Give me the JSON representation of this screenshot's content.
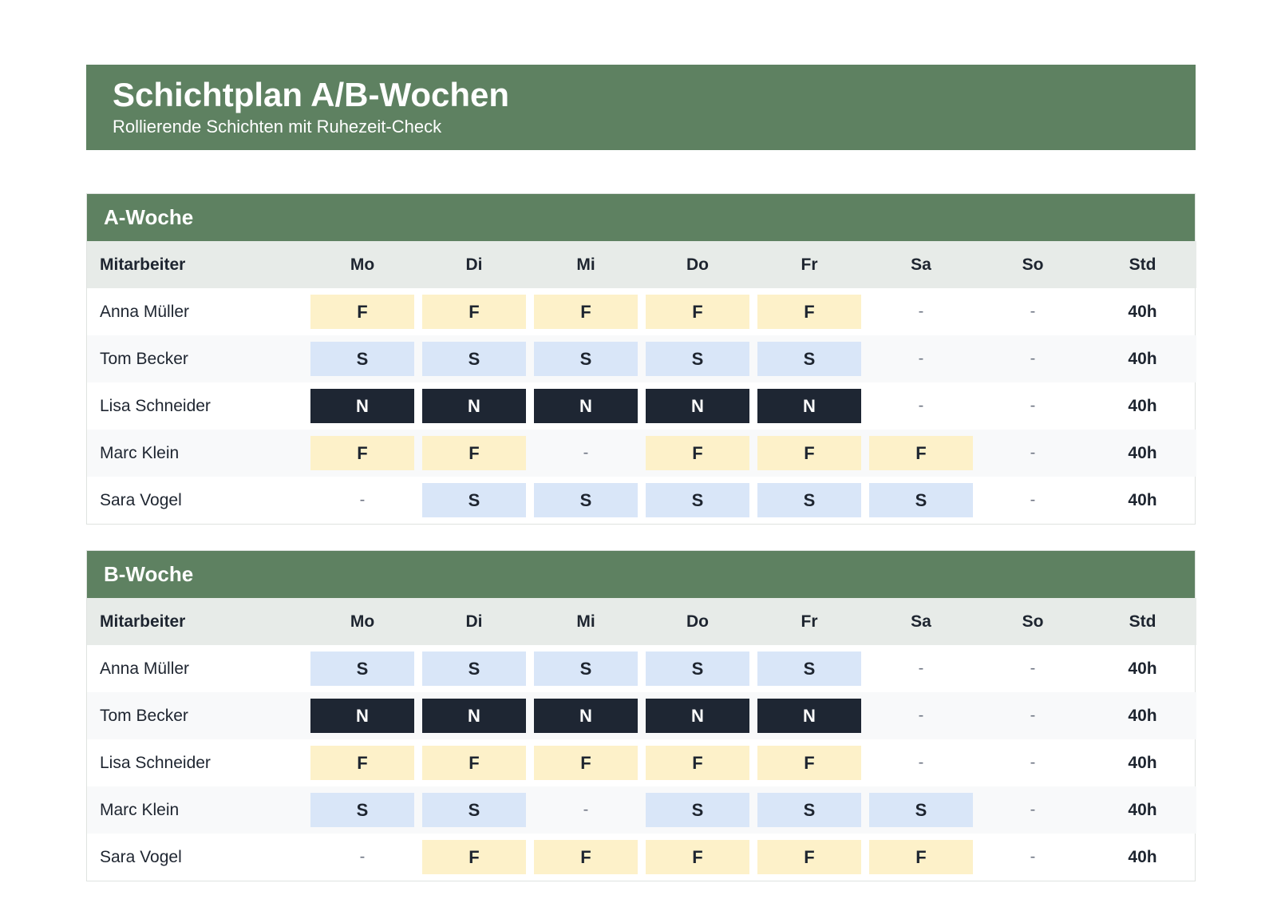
{
  "header": {
    "title": "Schichtplan A/B-Wochen",
    "subtitle": "Rollierende Schichten mit Ruhezeit-Check"
  },
  "columns": [
    "Mitarbeiter",
    "Mo",
    "Di",
    "Mi",
    "Do",
    "Fr",
    "Sa",
    "So",
    "Std"
  ],
  "colors": {
    "brand": "#5e8161",
    "shift_F": "#fdf1c9",
    "shift_S": "#d9e6f8",
    "shift_N": "#1e2633"
  },
  "weeks": [
    {
      "title": "A-Woche",
      "rows": [
        {
          "name": "Anna Müller",
          "shifts": [
            "F",
            "F",
            "F",
            "F",
            "F",
            "-",
            "-"
          ],
          "hours": "40h"
        },
        {
          "name": "Tom Becker",
          "shifts": [
            "S",
            "S",
            "S",
            "S",
            "S",
            "-",
            "-"
          ],
          "hours": "40h"
        },
        {
          "name": "Lisa Schneider",
          "shifts": [
            "N",
            "N",
            "N",
            "N",
            "N",
            "-",
            "-"
          ],
          "hours": "40h"
        },
        {
          "name": "Marc Klein",
          "shifts": [
            "F",
            "F",
            "-",
            "F",
            "F",
            "F",
            "-"
          ],
          "hours": "40h"
        },
        {
          "name": "Sara Vogel",
          "shifts": [
            "-",
            "S",
            "S",
            "S",
            "S",
            "S",
            "-"
          ],
          "hours": "40h"
        }
      ]
    },
    {
      "title": "B-Woche",
      "rows": [
        {
          "name": "Anna Müller",
          "shifts": [
            "S",
            "S",
            "S",
            "S",
            "S",
            "-",
            "-"
          ],
          "hours": "40h"
        },
        {
          "name": "Tom Becker",
          "shifts": [
            "N",
            "N",
            "N",
            "N",
            "N",
            "-",
            "-"
          ],
          "hours": "40h"
        },
        {
          "name": "Lisa Schneider",
          "shifts": [
            "F",
            "F",
            "F",
            "F",
            "F",
            "-",
            "-"
          ],
          "hours": "40h"
        },
        {
          "name": "Marc Klein",
          "shifts": [
            "S",
            "S",
            "-",
            "S",
            "S",
            "S",
            "-"
          ],
          "hours": "40h"
        },
        {
          "name": "Sara Vogel",
          "shifts": [
            "-",
            "F",
            "F",
            "F",
            "F",
            "F",
            "-"
          ],
          "hours": "40h"
        }
      ]
    }
  ]
}
